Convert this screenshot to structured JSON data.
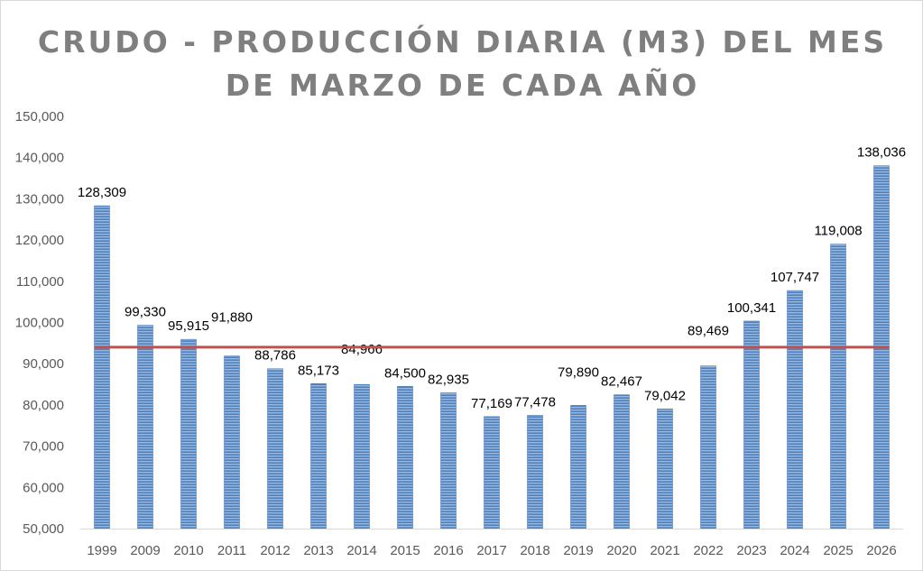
{
  "chart_data": {
    "type": "bar",
    "title": "CRUDO - PRODUCCIÓN DIARIA (M3) DEL MES DE MARZO DE CADA AÑO",
    "title_lines": [
      "CRUDO - PRODUCCIÓN DIARIA (M3) DEL MES",
      "DE MARZO DE CADA AÑO"
    ],
    "categories": [
      "1999",
      "2009",
      "2010",
      "2011",
      "2012",
      "2013",
      "2014",
      "2015",
      "2016",
      "2017",
      "2018",
      "2019",
      "2020",
      "2021",
      "2022",
      "2023",
      "2024",
      "2025",
      "2026"
    ],
    "values": [
      128309,
      99330,
      95915,
      91880,
      88786,
      85173,
      84966,
      84500,
      82935,
      77169,
      77478,
      79890,
      82467,
      79042,
      89469,
      100341,
      107747,
      119008,
      138036
    ],
    "value_labels": [
      "128,309",
      "99,330",
      "95,915",
      "91,880",
      "88,786",
      "85,173",
      "84,966",
      "84,500",
      "82,935",
      "77,169",
      "77,478",
      "79,890",
      "82,467",
      "79,042",
      "89,469",
      "100,341",
      "107,747",
      "119,008",
      "138,036"
    ],
    "ylim": [
      50000,
      150000
    ],
    "yticks": [
      50000,
      60000,
      70000,
      80000,
      90000,
      100000,
      110000,
      120000,
      130000,
      140000,
      150000
    ],
    "ytick_labels": [
      "50,000",
      "60,000",
      "70,000",
      "80,000",
      "90,000",
      "100,000",
      "110,000",
      "120,000",
      "130,000",
      "140,000",
      "150,000"
    ],
    "reference_line": {
      "value": 94000,
      "color": "#c0504d"
    },
    "bar_color": "#4f81bd",
    "xlabel": "",
    "ylabel": "",
    "grid": false,
    "legend": "none"
  }
}
